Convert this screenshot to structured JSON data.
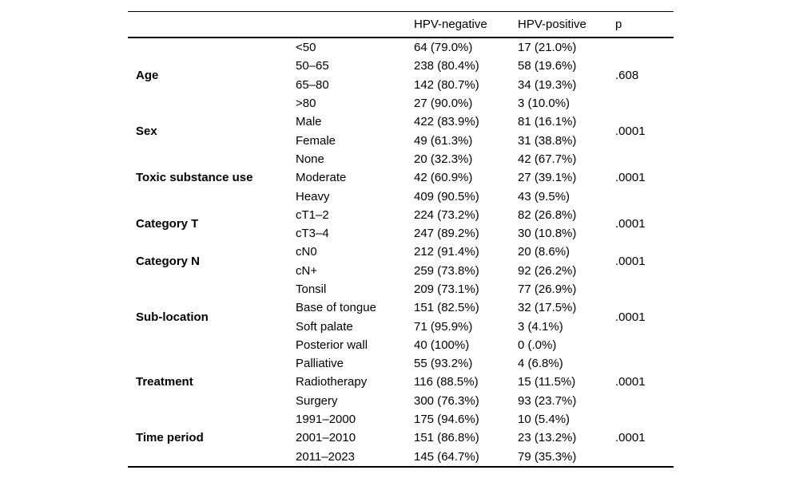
{
  "table": {
    "header": {
      "group": "",
      "level": "",
      "hpv_negative": "HPV-negative",
      "hpv_positive": "HPV-positive",
      "p": "p"
    },
    "groups": [
      {
        "label": "Age",
        "p": ".608",
        "rows": [
          {
            "level": "<50",
            "hpv_negative": "64 (79.0%)",
            "hpv_positive": "17 (21.0%)"
          },
          {
            "level": "50–65",
            "hpv_negative": "238 (80.4%)",
            "hpv_positive": "58 (19.6%)"
          },
          {
            "level": "65–80",
            "hpv_negative": "142 (80.7%)",
            "hpv_positive": "34 (19.3%)"
          },
          {
            "level": ">80",
            "hpv_negative": "27 (90.0%)",
            "hpv_positive": "3 (10.0%)"
          }
        ]
      },
      {
        "label": "Sex",
        "p": ".0001",
        "rows": [
          {
            "level": "Male",
            "hpv_negative": "422 (83.9%)",
            "hpv_positive": "81 (16.1%)"
          },
          {
            "level": "Female",
            "hpv_negative": "49 (61.3%)",
            "hpv_positive": "31 (38.8%)"
          }
        ]
      },
      {
        "label": "Toxic substance use",
        "p": ".0001",
        "rows": [
          {
            "level": "None",
            "hpv_negative": "20 (32.3%)",
            "hpv_positive": "42 (67.7%)"
          },
          {
            "level": "Moderate",
            "hpv_negative": "42 (60.9%)",
            "hpv_positive": "27 (39.1%)"
          },
          {
            "level": "Heavy",
            "hpv_negative": "409 (90.5%)",
            "hpv_positive": "43 (9.5%)"
          }
        ]
      },
      {
        "label": "Category T",
        "p": ".0001",
        "rows": [
          {
            "level": "cT1–2",
            "hpv_negative": "224 (73.2%)",
            "hpv_positive": "82 (26.8%)"
          },
          {
            "level": "cT3–4",
            "hpv_negative": "247 (89.2%)",
            "hpv_positive": "30 (10.8%)"
          }
        ]
      },
      {
        "label": "Category N",
        "p": ".0001",
        "rows": [
          {
            "level": "cN0",
            "hpv_negative": "212 (91.4%)",
            "hpv_positive": "20 (8.6%)"
          },
          {
            "level": "cN+",
            "hpv_negative": "259 (73.8%)",
            "hpv_positive": "92 (26.2%)"
          }
        ]
      },
      {
        "label": "Sub-location",
        "p": ".0001",
        "rows": [
          {
            "level": "Tonsil",
            "hpv_negative": "209 (73.1%)",
            "hpv_positive": "77 (26.9%)"
          },
          {
            "level": "Base of tongue",
            "hpv_negative": "151 (82.5%)",
            "hpv_positive": "32 (17.5%)"
          },
          {
            "level": "Soft palate",
            "hpv_negative": "71 (95.9%)",
            "hpv_positive": "3 (4.1%)"
          },
          {
            "level": "Posterior wall",
            "hpv_negative": "40 (100%)",
            "hpv_positive": "0 (.0%)"
          }
        ]
      },
      {
        "label": "Treatment",
        "p": ".0001",
        "rows": [
          {
            "level": "Palliative",
            "hpv_negative": "55 (93.2%)",
            "hpv_positive": "4 (6.8%)"
          },
          {
            "level": "Radiotherapy",
            "hpv_negative": "116 (88.5%)",
            "hpv_positive": "15 (11.5%)"
          },
          {
            "level": "Surgery",
            "hpv_negative": "300 (76.3%)",
            "hpv_positive": "93 (23.7%)"
          }
        ]
      },
      {
        "label": "Time period",
        "p": ".0001",
        "rows": [
          {
            "level": "1991–2000",
            "hpv_negative": "175 (94.6%)",
            "hpv_positive": "10 (5.4%)"
          },
          {
            "level": "2001–2010",
            "hpv_negative": "151 (86.8%)",
            "hpv_positive": "23 (13.2%)"
          },
          {
            "level": "2011–2023",
            "hpv_negative": "145 (64.7%)",
            "hpv_positive": "79 (35.3%)"
          }
        ]
      }
    ]
  }
}
